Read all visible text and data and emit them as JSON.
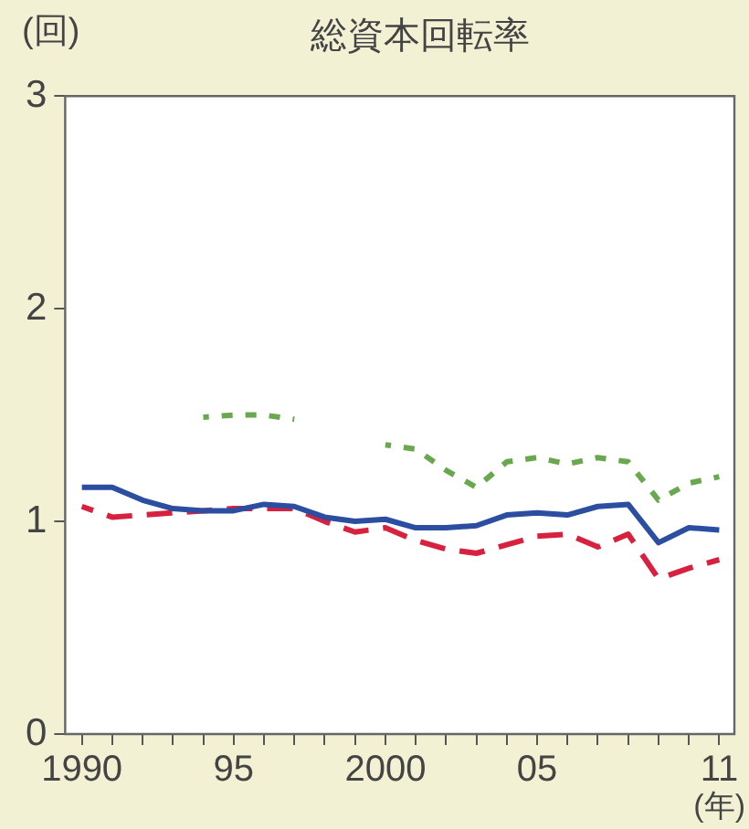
{
  "chart_data": {
    "type": "line",
    "title": "総資本回転率",
    "ylabel": "(回)",
    "xlabel": "(年)",
    "x": [
      1990,
      1991,
      1992,
      1993,
      1994,
      1995,
      1996,
      1997,
      1998,
      1999,
      2000,
      2001,
      2002,
      2003,
      2004,
      2005,
      2006,
      2007,
      2008,
      2009,
      2010,
      2011
    ],
    "series": [
      {
        "color": "#2b4ea0",
        "line_style": "solid",
        "values": [
          1.16,
          1.16,
          1.1,
          1.06,
          1.05,
          1.05,
          1.08,
          1.07,
          1.02,
          1.0,
          1.01,
          0.97,
          0.97,
          0.98,
          1.03,
          1.04,
          1.03,
          1.07,
          1.08,
          0.9,
          0.97,
          0.96
        ]
      },
      {
        "color": "#d8213f",
        "line_style": "dashed",
        "values": [
          1.07,
          1.02,
          1.03,
          1.04,
          1.05,
          1.06,
          1.06,
          1.06,
          1.0,
          0.95,
          0.97,
          0.91,
          0.87,
          0.85,
          0.89,
          0.93,
          0.94,
          0.88,
          0.94,
          0.73,
          0.78,
          0.82
        ]
      },
      {
        "color": "#6aa84f",
        "line_style": "dotted",
        "values": [
          null,
          null,
          null,
          null,
          1.49,
          1.5,
          1.5,
          1.48,
          null,
          null,
          1.36,
          1.34,
          1.24,
          1.16,
          1.28,
          1.3,
          1.27,
          1.3,
          1.28,
          1.1,
          1.18,
          1.21
        ]
      }
    ],
    "xlim": [
      1989.45,
      2011.5
    ],
    "xticks": [
      {
        "value": 1990,
        "label": "1990"
      },
      {
        "value": 1991,
        "label": null
      },
      {
        "value": 1992,
        "label": null
      },
      {
        "value": 1993,
        "label": null
      },
      {
        "value": 1994,
        "label": null
      },
      {
        "value": 1995,
        "label": "95"
      },
      {
        "value": 1996,
        "label": null
      },
      {
        "value": 1997,
        "label": null
      },
      {
        "value": 1998,
        "label": null
      },
      {
        "value": 1999,
        "label": null
      },
      {
        "value": 2000,
        "label": "2000"
      },
      {
        "value": 2001,
        "label": null
      },
      {
        "value": 2002,
        "label": null
      },
      {
        "value": 2003,
        "label": null
      },
      {
        "value": 2004,
        "label": null
      },
      {
        "value": 2005,
        "label": "05"
      },
      {
        "value": 2006,
        "label": null
      },
      {
        "value": 2007,
        "label": null
      },
      {
        "value": 2008,
        "label": null
      },
      {
        "value": 2009,
        "label": null
      },
      {
        "value": 2010,
        "label": null
      },
      {
        "value": 2011,
        "label": "11"
      }
    ],
    "ylim": [
      0,
      3
    ],
    "yticks": [
      0,
      1,
      2,
      3
    ],
    "grid": false,
    "legend": false,
    "marker": "none"
  }
}
